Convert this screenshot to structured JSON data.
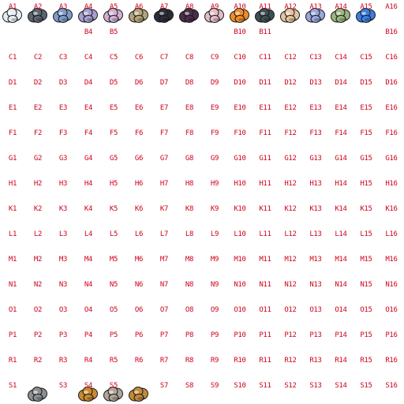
{
  "sheet": {
    "rows": [
      {
        "letter": "A",
        "cells": [
          "A1",
          "A2",
          "A3",
          "A4",
          "A5",
          "A6",
          "A7",
          "A8",
          "A9",
          "A10",
          "A11",
          "A12",
          "A13",
          "A14",
          "A15",
          "A16"
        ]
      },
      {
        "letter": "B",
        "cells": [
          "",
          "",
          "",
          "B4",
          "B5",
          "",
          "",
          "",
          "",
          "B10",
          "B11",
          "",
          "",
          "",
          "",
          "B16"
        ]
      },
      {
        "letter": "C",
        "cells": [
          "C1",
          "C2",
          "C3",
          "C4",
          "C5",
          "C6",
          "C7",
          "C8",
          "C9",
          "C10",
          "C11",
          "C12",
          "C13",
          "C14",
          "C15",
          "C16"
        ]
      },
      {
        "letter": "D",
        "cells": [
          "D1",
          "D2",
          "D3",
          "D4",
          "D5",
          "D6",
          "D7",
          "D8",
          "D9",
          "D10",
          "D11",
          "D12",
          "D13",
          "D14",
          "D15",
          "D16"
        ]
      },
      {
        "letter": "E",
        "cells": [
          "E1",
          "E2",
          "E3",
          "E4",
          "E5",
          "E6",
          "E7",
          "E8",
          "E9",
          "E10",
          "E11",
          "E12",
          "E13",
          "E14",
          "E15",
          "E16"
        ]
      },
      {
        "letter": "F",
        "cells": [
          "F1",
          "F2",
          "F3",
          "F4",
          "F5",
          "F6",
          "F7",
          "F8",
          "F9",
          "F10",
          "F11",
          "F12",
          "F13",
          "F14",
          "F15",
          "F16"
        ]
      },
      {
        "letter": "G",
        "cells": [
          "G1",
          "G2",
          "G3",
          "G4",
          "G5",
          "G6",
          "G7",
          "G8",
          "G9",
          "G10",
          "G11",
          "G12",
          "G13",
          "G14",
          "G15",
          "G16"
        ]
      },
      {
        "letter": "H",
        "cells": [
          "H1",
          "H2",
          "H3",
          "H4",
          "H5",
          "H6",
          "H7",
          "H8",
          "H9",
          "H10",
          "H11",
          "H12",
          "H13",
          "H14",
          "H15",
          "H16"
        ]
      },
      {
        "letter": "K",
        "cells": [
          "K1",
          "K2",
          "K3",
          "K4",
          "K5",
          "K6",
          "K7",
          "K8",
          "K9",
          "K10",
          "K11",
          "K12",
          "K13",
          "K14",
          "K15",
          "K16"
        ]
      },
      {
        "letter": "L",
        "cells": [
          "L1",
          "L2",
          "L3",
          "L4",
          "L5",
          "L6",
          "L7",
          "L8",
          "L9",
          "L10",
          "L11",
          "L12",
          "L13",
          "L14",
          "L15",
          "L16"
        ]
      },
      {
        "letter": "M",
        "cells": [
          "M1",
          "M2",
          "M3",
          "M4",
          "M5",
          "M6",
          "M7",
          "M8",
          "M9",
          "M10",
          "M11",
          "M12",
          "M13",
          "M14",
          "M15",
          "M16"
        ]
      },
      {
        "letter": "N",
        "cells": [
          "N1",
          "N2",
          "N3",
          "N4",
          "N5",
          "N6",
          "N7",
          "N8",
          "N9",
          "N10",
          "N11",
          "N12",
          "N13",
          "N14",
          "N15",
          "N16"
        ]
      },
      {
        "letter": "O",
        "cells": [
          "O1",
          "O2",
          "O3",
          "O4",
          "O5",
          "O6",
          "O7",
          "O8",
          "O9",
          "O10",
          "O11",
          "O12",
          "O13",
          "O14",
          "O15",
          "O16"
        ]
      },
      {
        "letter": "P",
        "cells": [
          "P1",
          "P2",
          "P3",
          "P4",
          "P5",
          "P6",
          "P7",
          "P8",
          "P9",
          "P10",
          "P11",
          "P12",
          "P13",
          "P14",
          "P15",
          "P16"
        ]
      },
      {
        "letter": "R",
        "cells": [
          "R1",
          "R2",
          "R3",
          "R4",
          "R5",
          "R6",
          "R7",
          "R8",
          "R9",
          "R10",
          "R11",
          "R12",
          "R13",
          "R14",
          "R15",
          "R16"
        ]
      },
      {
        "letter": "S",
        "cells": [
          "S1",
          "",
          "S3",
          "S4",
          "S5",
          "",
          "S7",
          "S8",
          "S9",
          "S10",
          "S11",
          "S12",
          "S13",
          "S14",
          "S15",
          "S16"
        ]
      }
    ],
    "sprites": [
      {
        "cell": "A1",
        "color": "#e6eef5"
      },
      {
        "cell": "A2",
        "color": "#5b6570"
      },
      {
        "cell": "A3",
        "color": "#7f9ccc"
      },
      {
        "cell": "A4",
        "color": "#a79fd0"
      },
      {
        "cell": "A5",
        "color": "#d2b0d2"
      },
      {
        "cell": "A6",
        "color": "#b3a577"
      },
      {
        "cell": "A7",
        "color": "#2c2c38"
      },
      {
        "cell": "A8",
        "color": "#4a2d4a"
      },
      {
        "cell": "A9",
        "color": "#e3bcc7"
      },
      {
        "cell": "A10",
        "color": "#f08c28"
      },
      {
        "cell": "A11",
        "color": "#3e4e52"
      },
      {
        "cell": "A12",
        "color": "#e6c2a0"
      },
      {
        "cell": "A13",
        "color": "#9aa6dd"
      },
      {
        "cell": "A14",
        "color": "#9cb47e"
      },
      {
        "cell": "A15",
        "color": "#3a7ee0"
      },
      {
        "cell": "S2",
        "color": "#8a8f94"
      },
      {
        "cell": "S4",
        "color": "#c98a30"
      },
      {
        "cell": "S5",
        "color": "#b0a59a"
      },
      {
        "cell": "S6",
        "color": "#c48a3a"
      }
    ]
  }
}
